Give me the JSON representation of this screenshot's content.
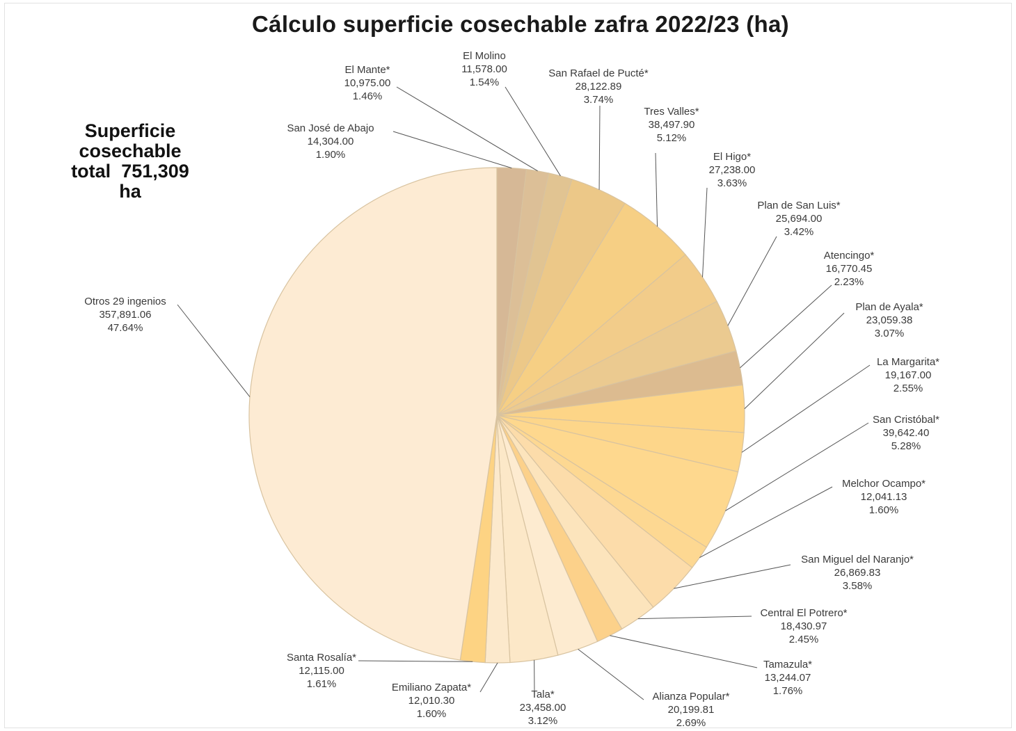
{
  "title": "Cálculo superficie cosechable zafra 2022/23 (ha)",
  "total_box": {
    "line1": "Superficie",
    "line2": "cosechable",
    "line3_label": "total",
    "line3_value": "751,309",
    "line4": "ha"
  },
  "chart_data": {
    "type": "pie",
    "title": "Cálculo superficie cosechable zafra 2022/23 (ha)",
    "start": "12 o'clock, clockwise",
    "slices": [
      {
        "name": "Emiliano Zapata*",
        "value_label": "12,010.30",
        "pct_label": "1.60%",
        "value": 12010.3,
        "pct": 1.6,
        "color": "#fce9cc"
      },
      {
        "name": "Tala*",
        "value_label": "23,458.00",
        "pct_label": "3.12%",
        "value": 23458.0,
        "pct": 3.12,
        "color": "#fce8c8"
      },
      {
        "name": "San José de Abajo",
        "value_label": "14,304.00",
        "pct_label": "1.90%",
        "value": 14304.0,
        "pct": 1.9,
        "color": "#d6b896"
      },
      {
        "name": "El Mante*",
        "value_label": "10,975.00",
        "pct_label": "1.46%",
        "value": 10975.0,
        "pct": 1.46,
        "color": "#dcbf97"
      },
      {
        "name": "El Molino",
        "value_label": "11,578.00",
        "pct_label": "1.54%",
        "value": 11578.0,
        "pct": 1.54,
        "color": "#e1c492"
      },
      {
        "name": "San Rafael de Pucté*",
        "value_label": "28,122.89",
        "pct_label": "3.74%",
        "value": 28122.89,
        "pct": 3.74,
        "color": "#ecc888"
      },
      {
        "name": "Tres Valles*",
        "value_label": "38,497.90",
        "pct_label": "5.12%",
        "value": 38497.9,
        "pct": 5.12,
        "color": "#f6cf84"
      },
      {
        "name": "El Higo*",
        "value_label": "27,238.00",
        "pct_label": "3.63%",
        "value": 27238.0,
        "pct": 3.63,
        "color": "#f2cc8a"
      },
      {
        "name": "Plan de San Luis*",
        "value_label": "25,694.00",
        "pct_label": "3.42%",
        "value": 25694.0,
        "pct": 3.42,
        "color": "#ebca90"
      },
      {
        "name": "Atencingo*",
        "value_label": "16,770.45",
        "pct_label": "2.23%",
        "value": 16770.45,
        "pct": 2.23,
        "color": "#dcbb90"
      },
      {
        "name": "Plan de Ayala*",
        "value_label": "23,059.38",
        "pct_label": "3.07%",
        "value": 23059.38,
        "pct": 3.07,
        "color": "#fdd587"
      },
      {
        "name": "La Margarita*",
        "value_label": "19,167.00",
        "pct_label": "2.55%",
        "value": 19167.0,
        "pct": 2.55,
        "color": "#fdd68a"
      },
      {
        "name": "San Cristóbal*",
        "value_label": "39,642.40",
        "pct_label": "5.28%",
        "value": 39642.4,
        "pct": 5.28,
        "color": "#fed88e"
      },
      {
        "name": "Melchor Ocampo*",
        "value_label": "12,041.13",
        "pct_label": "1.60%",
        "value": 12041.13,
        "pct": 1.6,
        "color": "#fdd892"
      },
      {
        "name": "San Miguel del Naranjo*",
        "value_label": "26,869.83",
        "pct_label": "3.58%",
        "value": 26869.83,
        "pct": 3.58,
        "color": "#fcdcaa"
      },
      {
        "name": "Central El Potrero*",
        "value_label": "18,430.97",
        "pct_label": "2.45%",
        "value": 18430.97,
        "pct": 2.45,
        "color": "#fce4bc"
      },
      {
        "name": "Tamazula*",
        "value_label": "13,244.07",
        "pct_label": "1.76%",
        "value": 13244.07,
        "pct": 1.76,
        "color": "#fcd18a"
      },
      {
        "name": "Alianza Popular*",
        "value_label": "20,199.81",
        "pct_label": "2.69%",
        "value": 20199.81,
        "pct": 2.69,
        "color": "#fdebd0"
      },
      {
        "name": "Santa Rosalía*",
        "value_label": "12,115.00",
        "pct_label": "1.61%",
        "value": 12115.0,
        "pct": 1.61,
        "color": "#fdd383"
      },
      {
        "name": "Otros 29 ingenios",
        "value_label": "357,891.06",
        "pct_label": "47.64%",
        "value": 357891.06,
        "pct": 47.64,
        "color": "#fdebd3"
      }
    ]
  }
}
